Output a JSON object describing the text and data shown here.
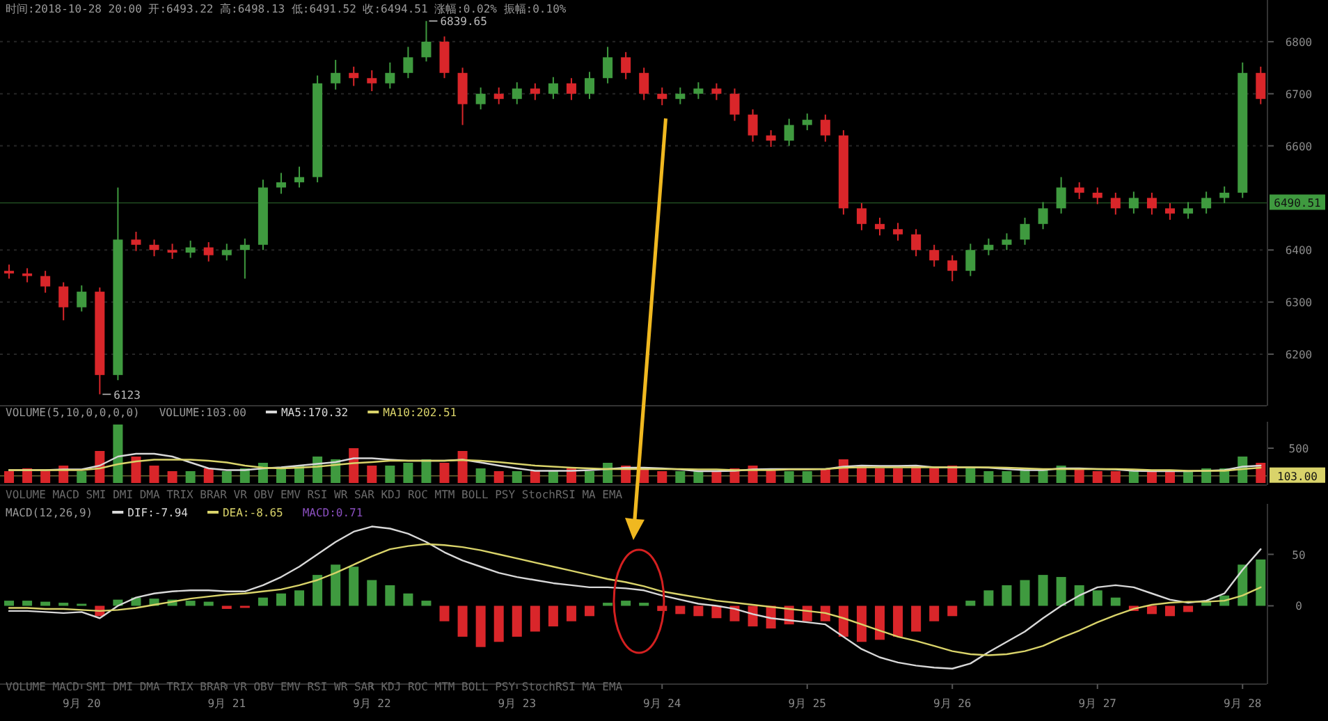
{
  "chart_data": [
    {
      "type": "candlestick",
      "title": "时间:2018-10-28 20:00  开:6493.22  高:6498.13  低:6491.52  收:6494.51  涨幅:0.02%  振幅:0.10%",
      "x": [
        "2018-09-19T12:00",
        "2018-09-19T15:00",
        "2018-09-19T18:00",
        "2018-09-19T21:00",
        "2018-09-20T00:00",
        "2018-09-20T03:00",
        "2018-09-20T06:00",
        "2018-09-20T09:00",
        "2018-09-20T12:00",
        "2018-09-20T15:00",
        "2018-09-20T18:00",
        "2018-09-20T21:00",
        "2018-09-21T00:00",
        "2018-09-21T03:00",
        "2018-09-21T06:00",
        "2018-09-21T09:00",
        "2018-09-21T12:00",
        "2018-09-21T15:00",
        "2018-09-21T18:00",
        "2018-09-21T21:00",
        "2018-09-22T00:00",
        "2018-09-22T03:00",
        "2018-09-22T06:00",
        "2018-09-22T09:00",
        "2018-09-22T12:00",
        "2018-09-22T15:00",
        "2018-09-22T18:00",
        "2018-09-22T21:00",
        "2018-09-23T00:00",
        "2018-09-23T03:00",
        "2018-09-23T06:00",
        "2018-09-23T09:00",
        "2018-09-23T12:00",
        "2018-09-23T15:00",
        "2018-09-23T18:00",
        "2018-09-23T21:00",
        "2018-09-24T00:00",
        "2018-09-24T03:00",
        "2018-09-24T06:00",
        "2018-09-24T09:00",
        "2018-09-24T12:00",
        "2018-09-24T15:00",
        "2018-09-24T18:00",
        "2018-09-24T21:00",
        "2018-09-25T00:00",
        "2018-09-25T03:00",
        "2018-09-25T06:00",
        "2018-09-25T09:00",
        "2018-09-25T12:00",
        "2018-09-25T15:00",
        "2018-09-25T18:00",
        "2018-09-25T21:00",
        "2018-09-26T00:00",
        "2018-09-26T03:00",
        "2018-09-26T06:00",
        "2018-09-26T09:00",
        "2018-09-26T12:00",
        "2018-09-26T15:00",
        "2018-09-26T18:00",
        "2018-09-26T21:00",
        "2018-09-27T00:00",
        "2018-09-27T03:00",
        "2018-09-27T06:00",
        "2018-09-27T09:00",
        "2018-09-27T12:00",
        "2018-09-27T15:00",
        "2018-09-27T18:00",
        "2018-09-27T21:00",
        "2018-09-28T00:00",
        "2018-09-28T03:00"
      ],
      "ohlc": [
        [
          6360,
          6372,
          6345,
          6355
        ],
        [
          6355,
          6365,
          6338,
          6350
        ],
        [
          6350,
          6360,
          6318,
          6330
        ],
        [
          6330,
          6338,
          6265,
          6290
        ],
        [
          6290,
          6332,
          6282,
          6320
        ],
        [
          6320,
          6328,
          6123,
          6160
        ],
        [
          6160,
          6520,
          6150,
          6420
        ],
        [
          6420,
          6435,
          6398,
          6410
        ],
        [
          6410,
          6420,
          6388,
          6400
        ],
        [
          6400,
          6412,
          6383,
          6395
        ],
        [
          6395,
          6418,
          6385,
          6405
        ],
        [
          6405,
          6415,
          6378,
          6390
        ],
        [
          6390,
          6412,
          6380,
          6400
        ],
        [
          6400,
          6422,
          6345,
          6410
        ],
        [
          6410,
          6535,
          6400,
          6520
        ],
        [
          6520,
          6548,
          6508,
          6530
        ],
        [
          6530,
          6560,
          6520,
          6540
        ],
        [
          6540,
          6735,
          6530,
          6720
        ],
        [
          6720,
          6765,
          6708,
          6740
        ],
        [
          6740,
          6752,
          6715,
          6730
        ],
        [
          6730,
          6745,
          6705,
          6720
        ],
        [
          6720,
          6760,
          6710,
          6740
        ],
        [
          6740,
          6790,
          6730,
          6770
        ],
        [
          6770,
          6839.65,
          6762,
          6800
        ],
        [
          6800,
          6810,
          6730,
          6740
        ],
        [
          6740,
          6750,
          6640,
          6680
        ],
        [
          6680,
          6712,
          6670,
          6700
        ],
        [
          6700,
          6712,
          6680,
          6690
        ],
        [
          6690,
          6722,
          6680,
          6710
        ],
        [
          6710,
          6720,
          6688,
          6700
        ],
        [
          6700,
          6732,
          6690,
          6720
        ],
        [
          6720,
          6730,
          6688,
          6700
        ],
        [
          6700,
          6742,
          6690,
          6730
        ],
        [
          6730,
          6790,
          6720,
          6770
        ],
        [
          6770,
          6780,
          6728,
          6740
        ],
        [
          6740,
          6750,
          6688,
          6700
        ],
        [
          6700,
          6712,
          6678,
          6690
        ],
        [
          6690,
          6712,
          6680,
          6700
        ],
        [
          6700,
          6722,
          6690,
          6710
        ],
        [
          6710,
          6720,
          6688,
          6700
        ],
        [
          6700,
          6710,
          6648,
          6660
        ],
        [
          6660,
          6670,
          6608,
          6620
        ],
        [
          6620,
          6630,
          6598,
          6610
        ],
        [
          6610,
          6652,
          6600,
          6640
        ],
        [
          6640,
          6662,
          6630,
          6650
        ],
        [
          6650,
          6660,
          6608,
          6620
        ],
        [
          6620,
          6630,
          6468,
          6480
        ],
        [
          6480,
          6490,
          6438,
          6450
        ],
        [
          6450,
          6462,
          6428,
          6440
        ],
        [
          6440,
          6452,
          6418,
          6430
        ],
        [
          6430,
          6440,
          6388,
          6400
        ],
        [
          6400,
          6410,
          6368,
          6380
        ],
        [
          6380,
          6390,
          6340,
          6360
        ],
        [
          6360,
          6412,
          6350,
          6400
        ],
        [
          6400,
          6422,
          6390,
          6410
        ],
        [
          6410,
          6432,
          6400,
          6420
        ],
        [
          6420,
          6462,
          6410,
          6450
        ],
        [
          6450,
          6492,
          6440,
          6480
        ],
        [
          6480,
          6540,
          6470,
          6520
        ],
        [
          6520,
          6530,
          6498,
          6510
        ],
        [
          6510,
          6520,
          6488,
          6500
        ],
        [
          6500,
          6510,
          6468,
          6480
        ],
        [
          6480,
          6512,
          6470,
          6500
        ],
        [
          6500,
          6510,
          6468,
          6480
        ],
        [
          6480,
          6490,
          6458,
          6470
        ],
        [
          6470,
          6492,
          6460,
          6480
        ],
        [
          6480,
          6512,
          6470,
          6500
        ],
        [
          6500,
          6522,
          6490,
          6510
        ],
        [
          6510,
          6760,
          6500,
          6740
        ],
        [
          6740,
          6752,
          6680,
          6690
        ]
      ],
      "colors": [
        "#d9262a",
        "#d9262a",
        "#d9262a",
        "#d9262a",
        "#3f9a3f",
        "#d9262a",
        "#3f9a3f",
        "#d9262a",
        "#d9262a",
        "#d9262a",
        "#3f9a3f",
        "#d9262a",
        "#3f9a3f",
        "#3f9a3f",
        "#3f9a3f",
        "#3f9a3f",
        "#3f9a3f",
        "#3f9a3f",
        "#3f9a3f",
        "#d9262a",
        "#d9262a",
        "#3f9a3f",
        "#3f9a3f",
        "#3f9a3f",
        "#d9262a",
        "#d9262a",
        "#3f9a3f",
        "#d9262a",
        "#3f9a3f",
        "#d9262a",
        "#3f9a3f",
        "#d9262a",
        "#3f9a3f",
        "#3f9a3f",
        "#d9262a",
        "#d9262a",
        "#d9262a",
        "#3f9a3f",
        "#3f9a3f",
        "#d9262a",
        "#d9262a",
        "#d9262a",
        "#d9262a",
        "#3f9a3f",
        "#3f9a3f",
        "#d9262a",
        "#d9262a",
        "#d9262a",
        "#d9262a",
        "#d9262a",
        "#d9262a",
        "#d9262a",
        "#d9262a",
        "#3f9a3f",
        "#3f9a3f",
        "#3f9a3f",
        "#3f9a3f",
        "#3f9a3f",
        "#3f9a3f",
        "#d9262a",
        "#d9262a",
        "#d9262a",
        "#3f9a3f",
        "#d9262a",
        "#d9262a",
        "#3f9a3f",
        "#3f9a3f",
        "#3f9a3f",
        "#3f9a3f",
        "#d9262a"
      ],
      "xlim": [
        "2018-09-19T10:30",
        "2018-09-28T04:00"
      ],
      "ylim": [
        6105,
        6880
      ],
      "yticks": [
        6200,
        6300,
        6400,
        6600,
        6700,
        6800
      ],
      "grid": "y",
      "tick_labels": "y",
      "ref_lines": [
        {
          "axis": "y",
          "value": 6490.51,
          "label": "6490.51",
          "color": "#3f9a3f"
        }
      ],
      "annotations": [
        {
          "text": "6839.65",
          "x": "2018-09-22T09:00",
          "y": 6839.65
        },
        {
          "text": "6123",
          "x": "2018-09-20T03:00",
          "y": 6123
        }
      ]
    },
    {
      "type": "bar",
      "title": "VOLUME(5,10,0,0,0,0)",
      "x": [
        "2018-09-19T12:00",
        "2018-09-19T15:00",
        "2018-09-19T18:00",
        "2018-09-19T21:00",
        "2018-09-20T00:00",
        "2018-09-20T03:00",
        "2018-09-20T06:00",
        "2018-09-20T09:00",
        "2018-09-20T12:00",
        "2018-09-20T15:00",
        "2018-09-20T18:00",
        "2018-09-20T21:00",
        "2018-09-21T00:00",
        "2018-09-21T03:00",
        "2018-09-21T06:00",
        "2018-09-21T09:00",
        "2018-09-21T12:00",
        "2018-09-21T15:00",
        "2018-09-21T18:00",
        "2018-09-21T21:00",
        "2018-09-22T00:00",
        "2018-09-22T03:00",
        "2018-09-22T06:00",
        "2018-09-22T09:00",
        "2018-09-22T12:00",
        "2018-09-22T15:00",
        "2018-09-22T18:00",
        "2018-09-22T21:00",
        "2018-09-23T00:00",
        "2018-09-23T03:00",
        "2018-09-23T06:00",
        "2018-09-23T09:00",
        "2018-09-23T12:00",
        "2018-09-23T15:00",
        "2018-09-23T18:00",
        "2018-09-23T21:00",
        "2018-09-24T00:00",
        "2018-09-24T03:00",
        "2018-09-24T06:00",
        "2018-09-24T09:00",
        "2018-09-24T12:00",
        "2018-09-24T15:00",
        "2018-09-24T18:00",
        "2018-09-24T21:00",
        "2018-09-25T00:00",
        "2018-09-25T03:00",
        "2018-09-25T06:00",
        "2018-09-25T09:00",
        "2018-09-25T12:00",
        "2018-09-25T15:00",
        "2018-09-25T18:00",
        "2018-09-25T21:00",
        "2018-09-26T00:00",
        "2018-09-26T03:00",
        "2018-09-26T06:00",
        "2018-09-26T09:00",
        "2018-09-26T12:00",
        "2018-09-26T15:00",
        "2018-09-26T18:00",
        "2018-09-26T21:00",
        "2018-09-27T00:00",
        "2018-09-27T03:00",
        "2018-09-27T06:00",
        "2018-09-27T09:00",
        "2018-09-27T12:00",
        "2018-09-27T15:00",
        "2018-09-27T18:00",
        "2018-09-27T21:00",
        "2018-09-28T00:00",
        "2018-09-28T03:00"
      ],
      "series": [
        {
          "type": "bar",
          "values": [
            170,
            210,
            170,
            250,
            170,
            460,
            840,
            380,
            250,
            170,
            170,
            210,
            170,
            210,
            290,
            210,
            250,
            380,
            340,
            500,
            250,
            250,
            290,
            340,
            290,
            460,
            210,
            170,
            170,
            170,
            170,
            210,
            170,
            290,
            250,
            210,
            170,
            170,
            170,
            170,
            210,
            250,
            210,
            170,
            170,
            210,
            340,
            250,
            210,
            210,
            250,
            210,
            250,
            210,
            170,
            170,
            210,
            210,
            250,
            210,
            170,
            170,
            170,
            170,
            170,
            170,
            210,
            210,
            380,
            290
          ],
          "colors": [
            "#d9262a",
            "#d9262a",
            "#d9262a",
            "#d9262a",
            "#3f9a3f",
            "#d9262a",
            "#3f9a3f",
            "#d9262a",
            "#d9262a",
            "#d9262a",
            "#3f9a3f",
            "#d9262a",
            "#3f9a3f",
            "#3f9a3f",
            "#3f9a3f",
            "#3f9a3f",
            "#3f9a3f",
            "#3f9a3f",
            "#3f9a3f",
            "#d9262a",
            "#d9262a",
            "#3f9a3f",
            "#3f9a3f",
            "#3f9a3f",
            "#d9262a",
            "#d9262a",
            "#3f9a3f",
            "#d9262a",
            "#3f9a3f",
            "#d9262a",
            "#3f9a3f",
            "#d9262a",
            "#3f9a3f",
            "#3f9a3f",
            "#d9262a",
            "#d9262a",
            "#d9262a",
            "#3f9a3f",
            "#3f9a3f",
            "#d9262a",
            "#d9262a",
            "#d9262a",
            "#d9262a",
            "#3f9a3f",
            "#3f9a3f",
            "#d9262a",
            "#d9262a",
            "#d9262a",
            "#d9262a",
            "#d9262a",
            "#d9262a",
            "#d9262a",
            "#d9262a",
            "#3f9a3f",
            "#3f9a3f",
            "#3f9a3f",
            "#3f9a3f",
            "#3f9a3f",
            "#3f9a3f",
            "#d9262a",
            "#d9262a",
            "#d9262a",
            "#3f9a3f",
            "#d9262a",
            "#d9262a",
            "#3f9a3f",
            "#3f9a3f",
            "#3f9a3f",
            "#3f9a3f",
            "#d9262a"
          ]
        },
        {
          "type": "line",
          "name": "MA5:170.32",
          "color": "#d8d8d8",
          "values": [
            185,
            185,
            185,
            195,
            195,
            250,
            380,
            420,
            420,
            380,
            295,
            210,
            185,
            185,
            210,
            225,
            250,
            275,
            300,
            355,
            355,
            335,
            320,
            320,
            320,
            335,
            295,
            250,
            210,
            175,
            175,
            175,
            185,
            200,
            220,
            220,
            210,
            195,
            170,
            170,
            175,
            195,
            200,
            200,
            200,
            200,
            235,
            250,
            245,
            245,
            250,
            225,
            225,
            225,
            220,
            200,
            185,
            185,
            210,
            210,
            200,
            195,
            175,
            170,
            170,
            170,
            175,
            185,
            235,
            250
          ]
        },
        {
          "type": "line",
          "name": "MA10:202.51",
          "color": "#d9d36a",
          "values": [
            185,
            185,
            185,
            185,
            185,
            210,
            270,
            310,
            335,
            335,
            335,
            320,
            295,
            250,
            220,
            210,
            220,
            235,
            260,
            285,
            300,
            320,
            320,
            320,
            320,
            330,
            320,
            300,
            275,
            250,
            235,
            220,
            210,
            200,
            200,
            200,
            200,
            200,
            195,
            195,
            185,
            185,
            185,
            195,
            195,
            200,
            220,
            225,
            225,
            225,
            225,
            225,
            225,
            225,
            225,
            220,
            210,
            200,
            200,
            200,
            200,
            200,
            195,
            185,
            185,
            175,
            175,
            175,
            200,
            220
          ]
        }
      ],
      "xlim": [
        "2018-09-19T10:30",
        "2018-09-28T04:00"
      ],
      "ylim": [
        0,
        880
      ],
      "yticks": [
        500
      ],
      "tick_labels": "y",
      "legend": "top",
      "ref_lines": [
        {
          "axis": "y",
          "value": 103,
          "label": "103.00",
          "color": "#d9d36a"
        }
      ],
      "annotations": [
        "VOLUME:103.00",
        "VOLUME  MACD  SMI  DMI  DMA  TRIX  BRAR  VR  OBV  EMV  RSI  WR  SAR  KDJ  ROC  MTM  BOLL  PSY  StochRSI  MA  EMA"
      ]
    },
    {
      "type": "bar",
      "title": "MACD(12,26,9)",
      "x": [
        "2018-09-19T12:00",
        "2018-09-19T15:00",
        "2018-09-19T18:00",
        "2018-09-19T21:00",
        "2018-09-20T00:00",
        "2018-09-20T03:00",
        "2018-09-20T06:00",
        "2018-09-20T09:00",
        "2018-09-20T12:00",
        "2018-09-20T15:00",
        "2018-09-20T18:00",
        "2018-09-20T21:00",
        "2018-09-21T00:00",
        "2018-09-21T03:00",
        "2018-09-21T06:00",
        "2018-09-21T09:00",
        "2018-09-21T12:00",
        "2018-09-21T15:00",
        "2018-09-21T18:00",
        "2018-09-21T21:00",
        "2018-09-22T00:00",
        "2018-09-22T03:00",
        "2018-09-22T06:00",
        "2018-09-22T09:00",
        "2018-09-22T12:00",
        "2018-09-22T15:00",
        "2018-09-22T18:00",
        "2018-09-22T21:00",
        "2018-09-23T00:00",
        "2018-09-23T03:00",
        "2018-09-23T06:00",
        "2018-09-23T09:00",
        "2018-09-23T12:00",
        "2018-09-23T15:00",
        "2018-09-23T18:00",
        "2018-09-23T21:00",
        "2018-09-24T00:00",
        "2018-09-24T03:00",
        "2018-09-24T06:00",
        "2018-09-24T09:00",
        "2018-09-24T12:00",
        "2018-09-24T15:00",
        "2018-09-24T18:00",
        "2018-09-24T21:00",
        "2018-09-25T00:00",
        "2018-09-25T03:00",
        "2018-09-25T06:00",
        "2018-09-25T09:00",
        "2018-09-25T12:00",
        "2018-09-25T15:00",
        "2018-09-25T18:00",
        "2018-09-25T21:00",
        "2018-09-26T00:00",
        "2018-09-26T03:00",
        "2018-09-26T06:00",
        "2018-09-26T09:00",
        "2018-09-26T12:00",
        "2018-09-26T15:00",
        "2018-09-26T18:00",
        "2018-09-26T21:00",
        "2018-09-27T00:00",
        "2018-09-27T03:00",
        "2018-09-27T06:00",
        "2018-09-27T09:00",
        "2018-09-27T12:00",
        "2018-09-27T15:00",
        "2018-09-27T18:00",
        "2018-09-27T21:00",
        "2018-09-28T00:00",
        "2018-09-28T03:00"
      ],
      "series": [
        {
          "type": "bar",
          "values": [
            5,
            5,
            4,
            3,
            2,
            -10,
            6,
            8,
            7,
            6,
            5,
            4,
            -3,
            -2,
            8,
            12,
            15,
            30,
            40,
            38,
            25,
            20,
            12,
            5,
            -15,
            -30,
            -40,
            -35,
            -30,
            -25,
            -20,
            -15,
            -10,
            3,
            5,
            3,
            -5,
            -8,
            -10,
            -12,
            -15,
            -20,
            -22,
            -18,
            -15,
            -15,
            -30,
            -35,
            -33,
            -30,
            -25,
            -15,
            -10,
            5,
            15,
            20,
            25,
            30,
            28,
            20,
            15,
            8,
            -5,
            -8,
            -10,
            -6,
            5,
            10,
            40,
            45
          ],
          "colors": [
            "#3f9a3f",
            "#3f9a3f",
            "#3f9a3f",
            "#3f9a3f",
            "#3f9a3f",
            "#d9262a",
            "#3f9a3f",
            "#3f9a3f",
            "#3f9a3f",
            "#3f9a3f",
            "#3f9a3f",
            "#3f9a3f",
            "#d9262a",
            "#d9262a",
            "#3f9a3f",
            "#3f9a3f",
            "#3f9a3f",
            "#3f9a3f",
            "#3f9a3f",
            "#3f9a3f",
            "#3f9a3f",
            "#3f9a3f",
            "#3f9a3f",
            "#3f9a3f",
            "#d9262a",
            "#d9262a",
            "#d9262a",
            "#d9262a",
            "#d9262a",
            "#d9262a",
            "#d9262a",
            "#d9262a",
            "#d9262a",
            "#3f9a3f",
            "#3f9a3f",
            "#3f9a3f",
            "#d9262a",
            "#d9262a",
            "#d9262a",
            "#d9262a",
            "#d9262a",
            "#d9262a",
            "#d9262a",
            "#d9262a",
            "#d9262a",
            "#d9262a",
            "#d9262a",
            "#d9262a",
            "#d9262a",
            "#d9262a",
            "#d9262a",
            "#d9262a",
            "#d9262a",
            "#3f9a3f",
            "#3f9a3f",
            "#3f9a3f",
            "#3f9a3f",
            "#3f9a3f",
            "#3f9a3f",
            "#3f9a3f",
            "#3f9a3f",
            "#3f9a3f",
            "#d9262a",
            "#d9262a",
            "#d9262a",
            "#d9262a",
            "#3f9a3f",
            "#3f9a3f",
            "#3f9a3f",
            "#3f9a3f"
          ]
        },
        {
          "type": "line",
          "name": "DIF:-7.94",
          "color": "#d8d8d8",
          "values": [
            -5,
            -5,
            -6,
            -7,
            -6,
            -12,
            0,
            8,
            12,
            14,
            15,
            15,
            14,
            14,
            20,
            28,
            38,
            50,
            62,
            72,
            77,
            75,
            70,
            62,
            52,
            44,
            38,
            32,
            28,
            25,
            22,
            20,
            18,
            18,
            17,
            15,
            10,
            6,
            2,
            0,
            -3,
            -8,
            -12,
            -14,
            -16,
            -18,
            -30,
            -42,
            -50,
            -55,
            -58,
            -60,
            -61,
            -56,
            -45,
            -35,
            -25,
            -12,
            0,
            10,
            18,
            20,
            18,
            12,
            6,
            3,
            5,
            12,
            35,
            55
          ]
        },
        {
          "type": "line",
          "name": "DEA:-8.65",
          "color": "#d9d36a",
          "values": [
            -2,
            -2,
            -3,
            -3,
            -4,
            -5,
            -4,
            -2,
            1,
            4,
            7,
            9,
            11,
            12,
            14,
            16,
            20,
            25,
            32,
            40,
            48,
            55,
            58,
            60,
            59,
            57,
            54,
            50,
            46,
            42,
            38,
            34,
            30,
            26,
            23,
            19,
            14,
            11,
            8,
            5,
            3,
            1,
            -1,
            -3,
            -5,
            -7,
            -12,
            -18,
            -24,
            -30,
            -34,
            -39,
            -44,
            -47,
            -48,
            -47,
            -44,
            -39,
            -31,
            -24,
            -16,
            -9,
            -3,
            1,
            3,
            4,
            4,
            5,
            10,
            18
          ]
        }
      ],
      "xlim": [
        "2018-09-19T10:30",
        "2018-09-28T04:00"
      ],
      "ylim": [
        -74,
        99
      ],
      "yticks": [
        0,
        50
      ],
      "legend": "top left",
      "xticks": [
        {
          "value": "2018-09-20",
          "label": "9月 20"
        },
        {
          "value": "2018-09-21",
          "label": "9月 21"
        },
        {
          "value": "2018-09-22",
          "label": "9月 22"
        },
        {
          "value": "2018-09-23",
          "label": "9月 23"
        },
        {
          "value": "2018-09-24",
          "label": "9月 24"
        },
        {
          "value": "2018-09-25",
          "label": "9月 25"
        },
        {
          "value": "2018-09-26",
          "label": "9月 26"
        },
        {
          "value": "2018-09-27",
          "label": "9月 27"
        },
        {
          "value": "2018-09-28",
          "label": "9月 28"
        }
      ],
      "annotations": [
        "MACD:0.71",
        "VOLUME  MACD  SMI  DMI  DMA  TRIX  BRAR  VR  OBV  EMV  RSI  WR  SAR  KDJ  ROC  MTM  BOLL  PSY  StochRSI  MA  EMA"
      ]
    }
  ]
}
